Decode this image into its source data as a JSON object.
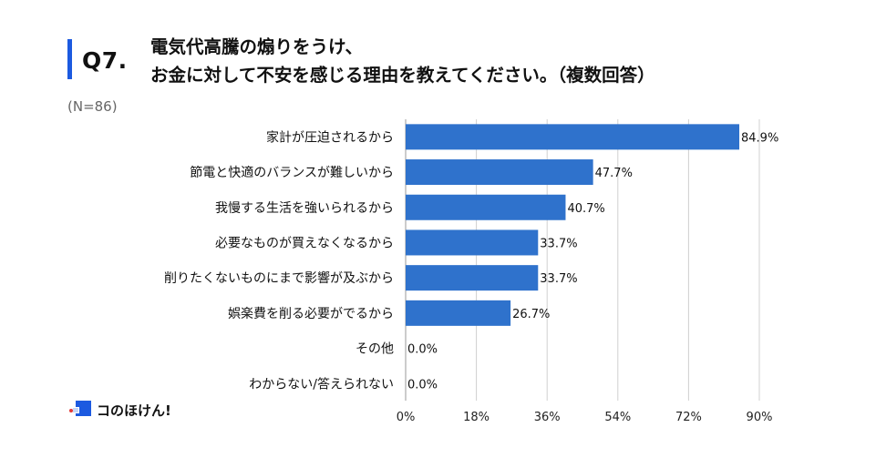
{
  "header": {
    "question_no": "Q7.",
    "title_line1": "電気代高騰の煽りをうけ、",
    "title_line2": "お金に対して不安を感じる理由を教えてください。（複数回答）",
    "sample": "(N=86)"
  },
  "brand": {
    "name": "コのほけん!",
    "color": "#1c5ae0"
  },
  "chart_data": {
    "type": "bar",
    "orientation": "horizontal",
    "categories": [
      "家計が圧迫されるから",
      "節電と快適のバランスが難しいから",
      "我慢する生活を強いられるから",
      "必要なものが買えなくなるから",
      "削りたくないものにまで影響が及ぶから",
      "娯楽費を削る必要がでるから",
      "その他",
      "わからない/答えられない"
    ],
    "values": [
      84.9,
      47.7,
      40.7,
      33.7,
      33.7,
      26.7,
      0.0,
      0.0
    ],
    "value_labels": [
      "84.9%",
      "47.7%",
      "40.7%",
      "33.7%",
      "33.7%",
      "26.7%",
      "0.0%",
      "0.0%"
    ],
    "x_ticks": [
      0,
      18,
      36,
      54,
      72,
      90
    ],
    "x_tick_labels": [
      "0%",
      "18%",
      "36%",
      "54%",
      "72%",
      "90%"
    ],
    "xlim": [
      0,
      90
    ],
    "grid": "vertical",
    "bar_color": "#2f72cc"
  }
}
